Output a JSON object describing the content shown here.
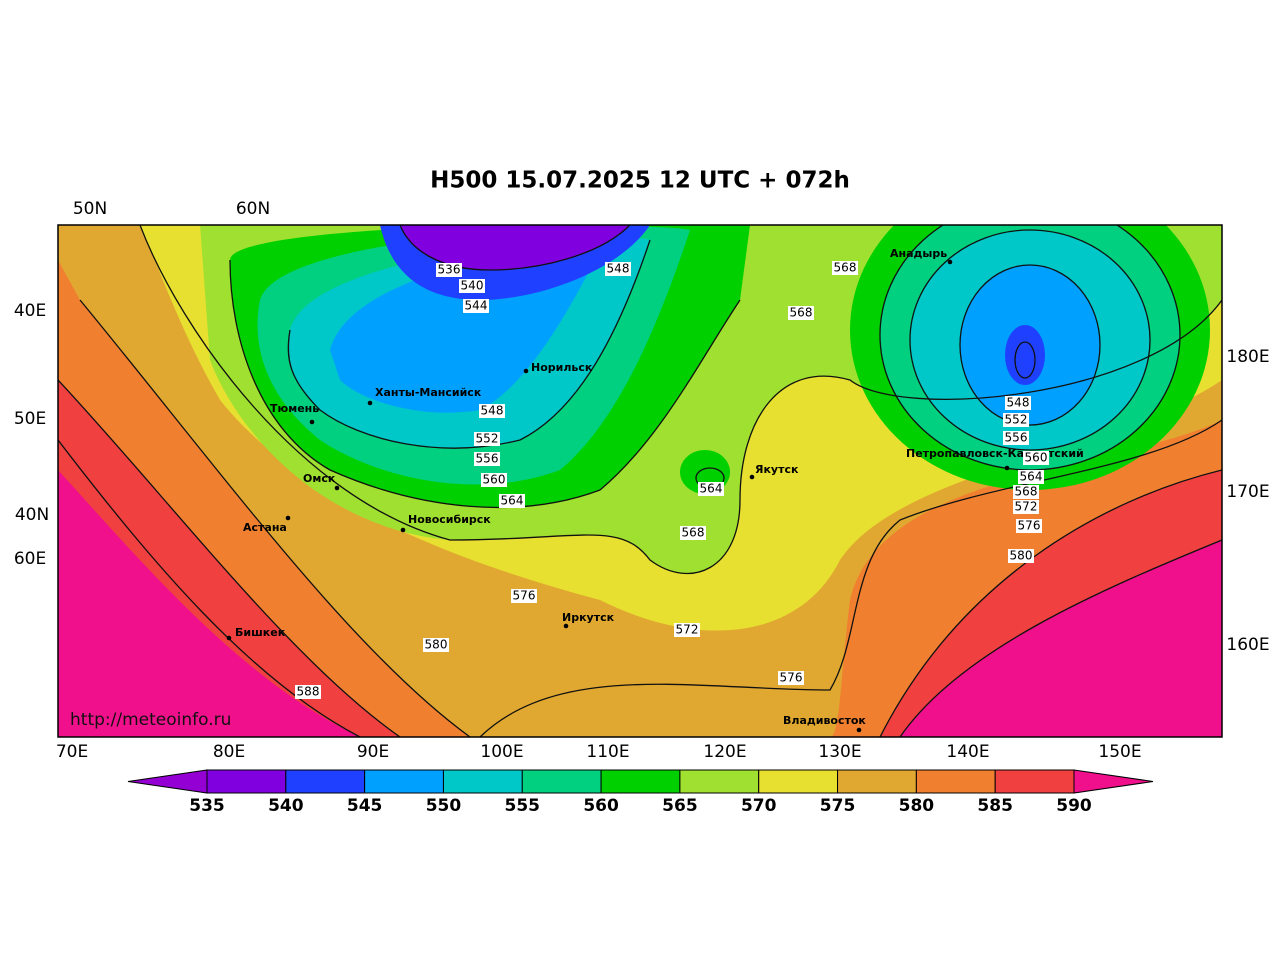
{
  "title": "H500  15.07.2025 12 UTC + 072h",
  "top_labels": [
    "50N",
    "60N"
  ],
  "left_labels": [
    "40E",
    "50E",
    "40N",
    "60E"
  ],
  "right_labels": [
    "180E",
    "170E",
    "160E"
  ],
  "bottom_labels": [
    "70E",
    "80E",
    "90E",
    "100E",
    "110E",
    "120E",
    "130E",
    "140E",
    "150E"
  ],
  "cities": [
    "Норильск",
    "Ханты-Мансийск",
    "Тюмень",
    "Омск",
    "Астана",
    "Новосибирск",
    "Бишкек",
    "Иркутск",
    "Якутск",
    "Анадырь",
    "Петропавловск-Камчатский",
    "Владивосток"
  ],
  "contour_labels": [
    536,
    540,
    544,
    548,
    568,
    568,
    548,
    552,
    556,
    560,
    564,
    564,
    568,
    576,
    572,
    576,
    580,
    588,
    548,
    552,
    556,
    560,
    564,
    568,
    572,
    576,
    580
  ],
  "colorbar": {
    "ticks": [
      535,
      540,
      545,
      550,
      555,
      560,
      565,
      570,
      575,
      580,
      585,
      590
    ],
    "colors": [
      "#9400d3",
      "#8000e0",
      "#2040ff",
      "#00a0ff",
      "#00c8c8",
      "#00d080",
      "#00d000",
      "#a0e030",
      "#e8e030",
      "#e0a830",
      "#f08030",
      "#f04040",
      "#f0108c"
    ]
  },
  "credit": "http://meteoinfo.ru"
}
